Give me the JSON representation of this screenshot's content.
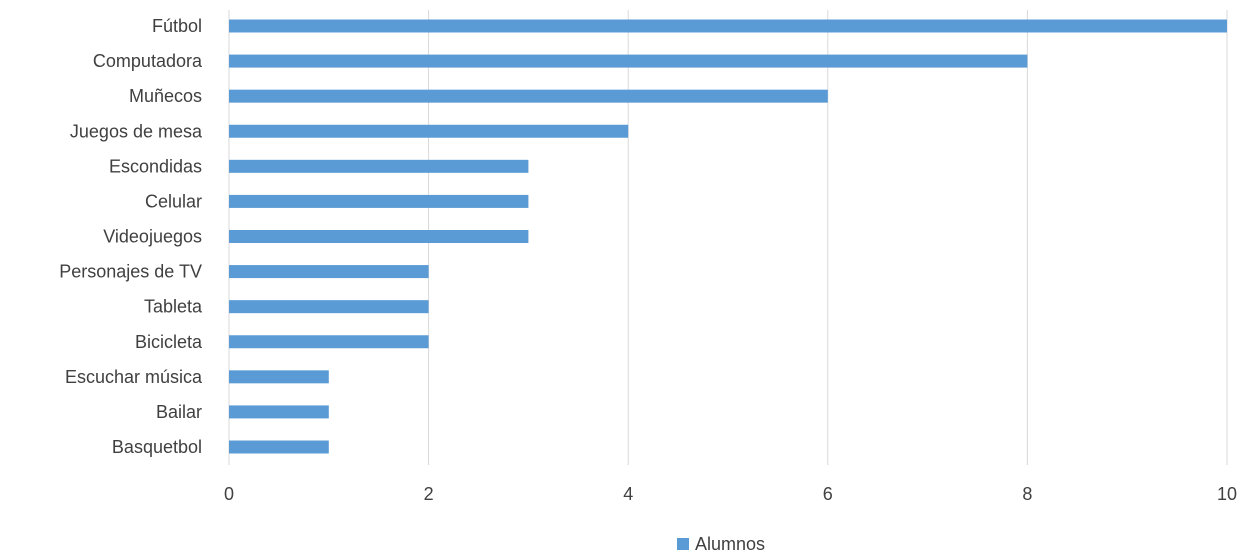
{
  "chart_data": {
    "type": "bar",
    "orientation": "horizontal",
    "categories": [
      "Fútbol",
      "Computadora",
      "Muñecos",
      "Juegos de mesa",
      "Escondidas",
      "Celular",
      "Videojuegos",
      "Personajes de TV",
      "Tableta",
      "Bicicleta",
      "Escuchar música",
      "Bailar",
      "Basquetbol"
    ],
    "series": [
      {
        "name": "Alumnos",
        "values": [
          10,
          8,
          6,
          4,
          3,
          3,
          3,
          2,
          2,
          2,
          1,
          1,
          1
        ],
        "color": "#5b9bd5"
      }
    ],
    "xlim": [
      0,
      10
    ],
    "xticks": [
      0,
      2,
      4,
      6,
      8,
      10
    ],
    "grid": true,
    "legend_position": "bottom"
  }
}
